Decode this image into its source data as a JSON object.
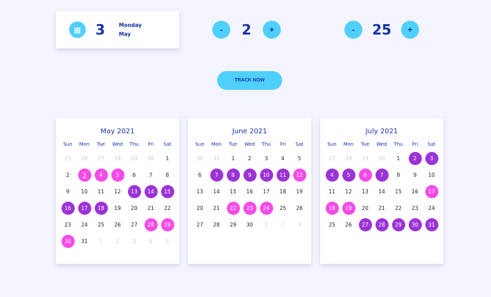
{
  "date_card": {
    "icon": "calendar-drop-icon",
    "day": "3",
    "weekday": "Monday",
    "month": "May"
  },
  "stepper1": {
    "minus": "-",
    "value": "2",
    "plus": "+"
  },
  "stepper2": {
    "minus": "-",
    "value": "25",
    "plus": "+"
  },
  "track_button": "TRACK NOW",
  "colors": {
    "accent": "#4fd0fb",
    "pink": "#f54ae8",
    "purple": "#9b33d6",
    "text": "#1632a8"
  },
  "weekdays": [
    "Sun",
    "Mon",
    "Tue",
    "Wed",
    "Thu",
    "Fri",
    "Sat"
  ],
  "calendars": [
    {
      "title": "May 2021",
      "days": [
        [
          "25",
          "o"
        ],
        [
          "26",
          "o"
        ],
        [
          "27",
          "o"
        ],
        [
          "28",
          "o"
        ],
        [
          "29",
          "o"
        ],
        [
          "30",
          "o"
        ],
        [
          "1",
          ""
        ],
        [
          "2",
          ""
        ],
        [
          "3",
          "p t"
        ],
        [
          "4",
          "p"
        ],
        [
          "5",
          "p"
        ],
        [
          "6",
          ""
        ],
        [
          "7",
          ""
        ],
        [
          "8",
          ""
        ],
        [
          "9",
          ""
        ],
        [
          "10",
          ""
        ],
        [
          "11",
          ""
        ],
        [
          "12",
          ""
        ],
        [
          "13",
          "u"
        ],
        [
          "14",
          "u"
        ],
        [
          "15",
          "u"
        ],
        [
          "16",
          "u"
        ],
        [
          "17",
          "u"
        ],
        [
          "18",
          "u"
        ],
        [
          "19",
          ""
        ],
        [
          "20",
          ""
        ],
        [
          "21",
          ""
        ],
        [
          "22",
          ""
        ],
        [
          "23",
          ""
        ],
        [
          "24",
          ""
        ],
        [
          "25",
          ""
        ],
        [
          "26",
          ""
        ],
        [
          "27",
          ""
        ],
        [
          "28",
          "p"
        ],
        [
          "29",
          "p"
        ],
        [
          "30",
          "p"
        ],
        [
          "31",
          ""
        ],
        [
          "1",
          "o"
        ],
        [
          "2",
          "o"
        ],
        [
          "3",
          "o"
        ],
        [
          "4",
          "o"
        ],
        [
          "5",
          "o"
        ]
      ]
    },
    {
      "title": "June 2021",
      "days": [
        [
          "30",
          "o"
        ],
        [
          "31",
          "o"
        ],
        [
          "1",
          ""
        ],
        [
          "2",
          ""
        ],
        [
          "3",
          ""
        ],
        [
          "4",
          ""
        ],
        [
          "5",
          ""
        ],
        [
          "6",
          ""
        ],
        [
          "7",
          "u"
        ],
        [
          "8",
          "u"
        ],
        [
          "9",
          "u"
        ],
        [
          "10",
          "u"
        ],
        [
          "11",
          "u"
        ],
        [
          "12",
          "p"
        ],
        [
          "13",
          ""
        ],
        [
          "14",
          ""
        ],
        [
          "15",
          ""
        ],
        [
          "16",
          ""
        ],
        [
          "17",
          ""
        ],
        [
          "18",
          ""
        ],
        [
          "19",
          ""
        ],
        [
          "20",
          ""
        ],
        [
          "21",
          ""
        ],
        [
          "22",
          "p"
        ],
        [
          "23",
          "p"
        ],
        [
          "24",
          "p"
        ],
        [
          "25",
          ""
        ],
        [
          "26",
          ""
        ],
        [
          "27",
          ""
        ],
        [
          "28",
          ""
        ],
        [
          "29",
          ""
        ],
        [
          "30",
          ""
        ],
        [
          "1",
          "o"
        ],
        [
          "2",
          "o"
        ],
        [
          "3",
          "o"
        ]
      ]
    },
    {
      "title": "July 2021",
      "days": [
        [
          "27",
          "o"
        ],
        [
          "28",
          "o"
        ],
        [
          "29",
          "o"
        ],
        [
          "30",
          "o"
        ],
        [
          "1",
          ""
        ],
        [
          "2",
          "u"
        ],
        [
          "3",
          "u"
        ],
        [
          "4",
          "u"
        ],
        [
          "5",
          "u"
        ],
        [
          "6",
          "p"
        ],
        [
          "7",
          "u"
        ],
        [
          "8",
          ""
        ],
        [
          "9",
          ""
        ],
        [
          "10",
          ""
        ],
        [
          "11",
          ""
        ],
        [
          "12",
          ""
        ],
        [
          "13",
          ""
        ],
        [
          "14",
          ""
        ],
        [
          "15",
          ""
        ],
        [
          "16",
          ""
        ],
        [
          "17",
          "p"
        ],
        [
          "18",
          "p"
        ],
        [
          "19",
          "p"
        ],
        [
          "20",
          ""
        ],
        [
          "21",
          ""
        ],
        [
          "22",
          ""
        ],
        [
          "23",
          ""
        ],
        [
          "24",
          ""
        ],
        [
          "25",
          ""
        ],
        [
          "26",
          ""
        ],
        [
          "27",
          "u"
        ],
        [
          "28",
          "u"
        ],
        [
          "29",
          "u"
        ],
        [
          "30",
          "u"
        ],
        [
          "31",
          "u"
        ]
      ]
    }
  ]
}
